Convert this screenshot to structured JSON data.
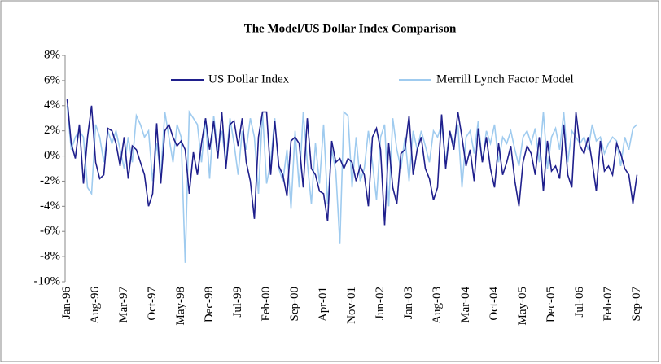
{
  "chart_data": {
    "type": "line",
    "title": "The Model/US Dollar Index Comparison",
    "categories": [
      "Jan-96",
      null,
      null,
      null,
      null,
      null,
      null,
      "Aug-96",
      null,
      null,
      null,
      null,
      null,
      null,
      "Mar-97",
      null,
      null,
      null,
      null,
      null,
      null,
      "Oct-97",
      null,
      null,
      null,
      null,
      null,
      null,
      "May-98",
      null,
      null,
      null,
      null,
      null,
      null,
      "Dec-98",
      null,
      null,
      null,
      null,
      null,
      null,
      "Jul-99",
      null,
      null,
      null,
      null,
      null,
      null,
      "Feb-00",
      null,
      null,
      null,
      null,
      null,
      null,
      "Sep-00",
      null,
      null,
      null,
      null,
      null,
      null,
      "Apr-01",
      null,
      null,
      null,
      null,
      null,
      null,
      "Nov-01",
      null,
      null,
      null,
      null,
      null,
      null,
      "Jun-02",
      null,
      null,
      null,
      null,
      null,
      null,
      "Jan-03",
      null,
      null,
      null,
      null,
      null,
      null,
      "Aug-03",
      null,
      null,
      null,
      null,
      null,
      null,
      "Mar-04",
      null,
      null,
      null,
      null,
      null,
      null,
      "Oct-04",
      null,
      null,
      null,
      null,
      null,
      null,
      "May-05",
      null,
      null,
      null,
      null,
      null,
      null,
      "Dec-05",
      null,
      null,
      null,
      null,
      null,
      null,
      "Jul-06",
      null,
      null,
      null,
      null,
      null,
      null,
      "Feb-07",
      null,
      null,
      null,
      null,
      null,
      null,
      "Sep-07"
    ],
    "series": [
      {
        "name": "US Dollar Index",
        "color": "#1f1f8c",
        "values": [
          4.5,
          1.0,
          -0.2,
          2.5,
          -2.2,
          1.5,
          4.0,
          -0.5,
          -1.8,
          -1.5,
          2.2,
          2.0,
          1.0,
          -0.8,
          1.5,
          -1.8,
          0.8,
          0.5,
          -0.5,
          -1.5,
          -4.0,
          -3.0,
          2.6,
          -2.2,
          2.0,
          2.5,
          1.5,
          0.8,
          1.2,
          0.5,
          -3.0,
          0.3,
          -1.5,
          1.0,
          3.0,
          0.5,
          2.8,
          -0.2,
          3.5,
          -1.0,
          2.5,
          2.8,
          0.8,
          3.0,
          -0.5,
          -2.0,
          -5.0,
          1.5,
          3.5,
          3.5,
          -1.5,
          2.8,
          -0.8,
          -1.5,
          -3.2,
          1.2,
          1.5,
          1.0,
          -2.5,
          3.0,
          -1.0,
          -1.5,
          -2.8,
          -3.0,
          -5.2,
          1.2,
          -0.5,
          -0.2,
          -1.0,
          -0.2,
          -0.5,
          -2.0,
          -0.8,
          -1.5,
          -4.0,
          1.5,
          2.2,
          0.5,
          -5.5,
          1.0,
          -2.5,
          -3.8,
          0.2,
          0.5,
          3.2,
          -1.5,
          0.5,
          1.5,
          -1.0,
          -1.8,
          -3.5,
          -2.5,
          3.3,
          -1.0,
          2.0,
          0.5,
          3.5,
          1.5,
          -0.8,
          0.5,
          -2.0,
          2.2,
          -0.5,
          1.5,
          -1.0,
          -2.5,
          1.0,
          -1.5,
          -0.5,
          0.8,
          -2.0,
          -4.0,
          -0.5,
          0.8,
          0.2,
          -1.5,
          1.5,
          -2.8,
          1.2,
          -1.2,
          -0.8,
          -1.8,
          2.5,
          -1.5,
          -2.5,
          3.5,
          0.8,
          0.2,
          1.5,
          -0.5,
          -2.8,
          1.2,
          -1.2,
          -0.8,
          -1.5,
          1.0,
          0.2,
          -1.0,
          -1.5,
          -3.8,
          -1.5
        ]
      },
      {
        "name": "Merrill Lynch Factor Model",
        "color": "#9fcbef",
        "values": [
          4.0,
          0.5,
          1.5,
          2.0,
          1.5,
          -2.5,
          -3.0,
          2.5,
          1.5,
          -0.5,
          2.0,
          1.0,
          2.0,
          0.5,
          -1.0,
          1.5,
          -0.5,
          3.2,
          2.5,
          1.5,
          2.0,
          -2.0,
          1.0,
          -1.5,
          3.5,
          1.5,
          -0.5,
          2.5,
          1.5,
          -8.5,
          3.5,
          3.0,
          2.5,
          -0.5,
          3.0,
          -1.8,
          3.2,
          0.5,
          2.0,
          -0.5,
          3.0,
          1.0,
          -1.5,
          2.0,
          0.5,
          3.0,
          1.5,
          -3.0,
          3.5,
          -2.2,
          -0.5,
          3.0,
          -1.0,
          -2.0,
          0.5,
          -4.2,
          2.0,
          -2.5,
          3.5,
          -0.5,
          -3.8,
          1.0,
          -2.2,
          2.5,
          -3.8,
          0.5,
          -1.2,
          -7.0,
          3.5,
          3.2,
          -2.5,
          1.5,
          -2.0,
          -1.0,
          2.0,
          -0.5,
          -3.5,
          1.5,
          2.5,
          -4.0,
          3.0,
          0.5,
          -1.0,
          1.5,
          -2.0,
          2.0,
          0.5,
          2.0,
          0.8,
          -0.5,
          2.0,
          1.5,
          2.5,
          -0.5,
          2.0,
          1.0,
          2.5,
          -2.5,
          1.5,
          2.0,
          0.2,
          2.8,
          -0.5,
          2.0,
          1.0,
          2.5,
          -0.5,
          1.5,
          1.0,
          2.0,
          0.5,
          -0.8,
          1.5,
          2.0,
          1.0,
          2.2,
          -0.5,
          3.5,
          -1.0,
          1.5,
          2.2,
          0.5,
          3.5,
          -0.5,
          2.0,
          1.5,
          1.0,
          1.5,
          0.5,
          2.5,
          1.2,
          1.5,
          0.2,
          1.0,
          1.5,
          1.2,
          -0.8,
          1.5,
          0.5,
          2.2,
          2.5
        ]
      }
    ],
    "ylim": [
      -10,
      8
    ],
    "yticks": [
      {
        "value": -10,
        "label": "-10%"
      },
      {
        "value": -8,
        "label": "-8%"
      },
      {
        "value": -6,
        "label": "-6%"
      },
      {
        "value": -4,
        "label": "-4%"
      },
      {
        "value": -2,
        "label": "-2%"
      },
      {
        "value": 0,
        "label": "0%"
      },
      {
        "value": 2,
        "label": "2%"
      },
      {
        "value": 4,
        "label": "4%"
      },
      {
        "value": 6,
        "label": "6%"
      },
      {
        "value": 8,
        "label": "8%"
      }
    ],
    "grid": false,
    "legend": "top"
  }
}
